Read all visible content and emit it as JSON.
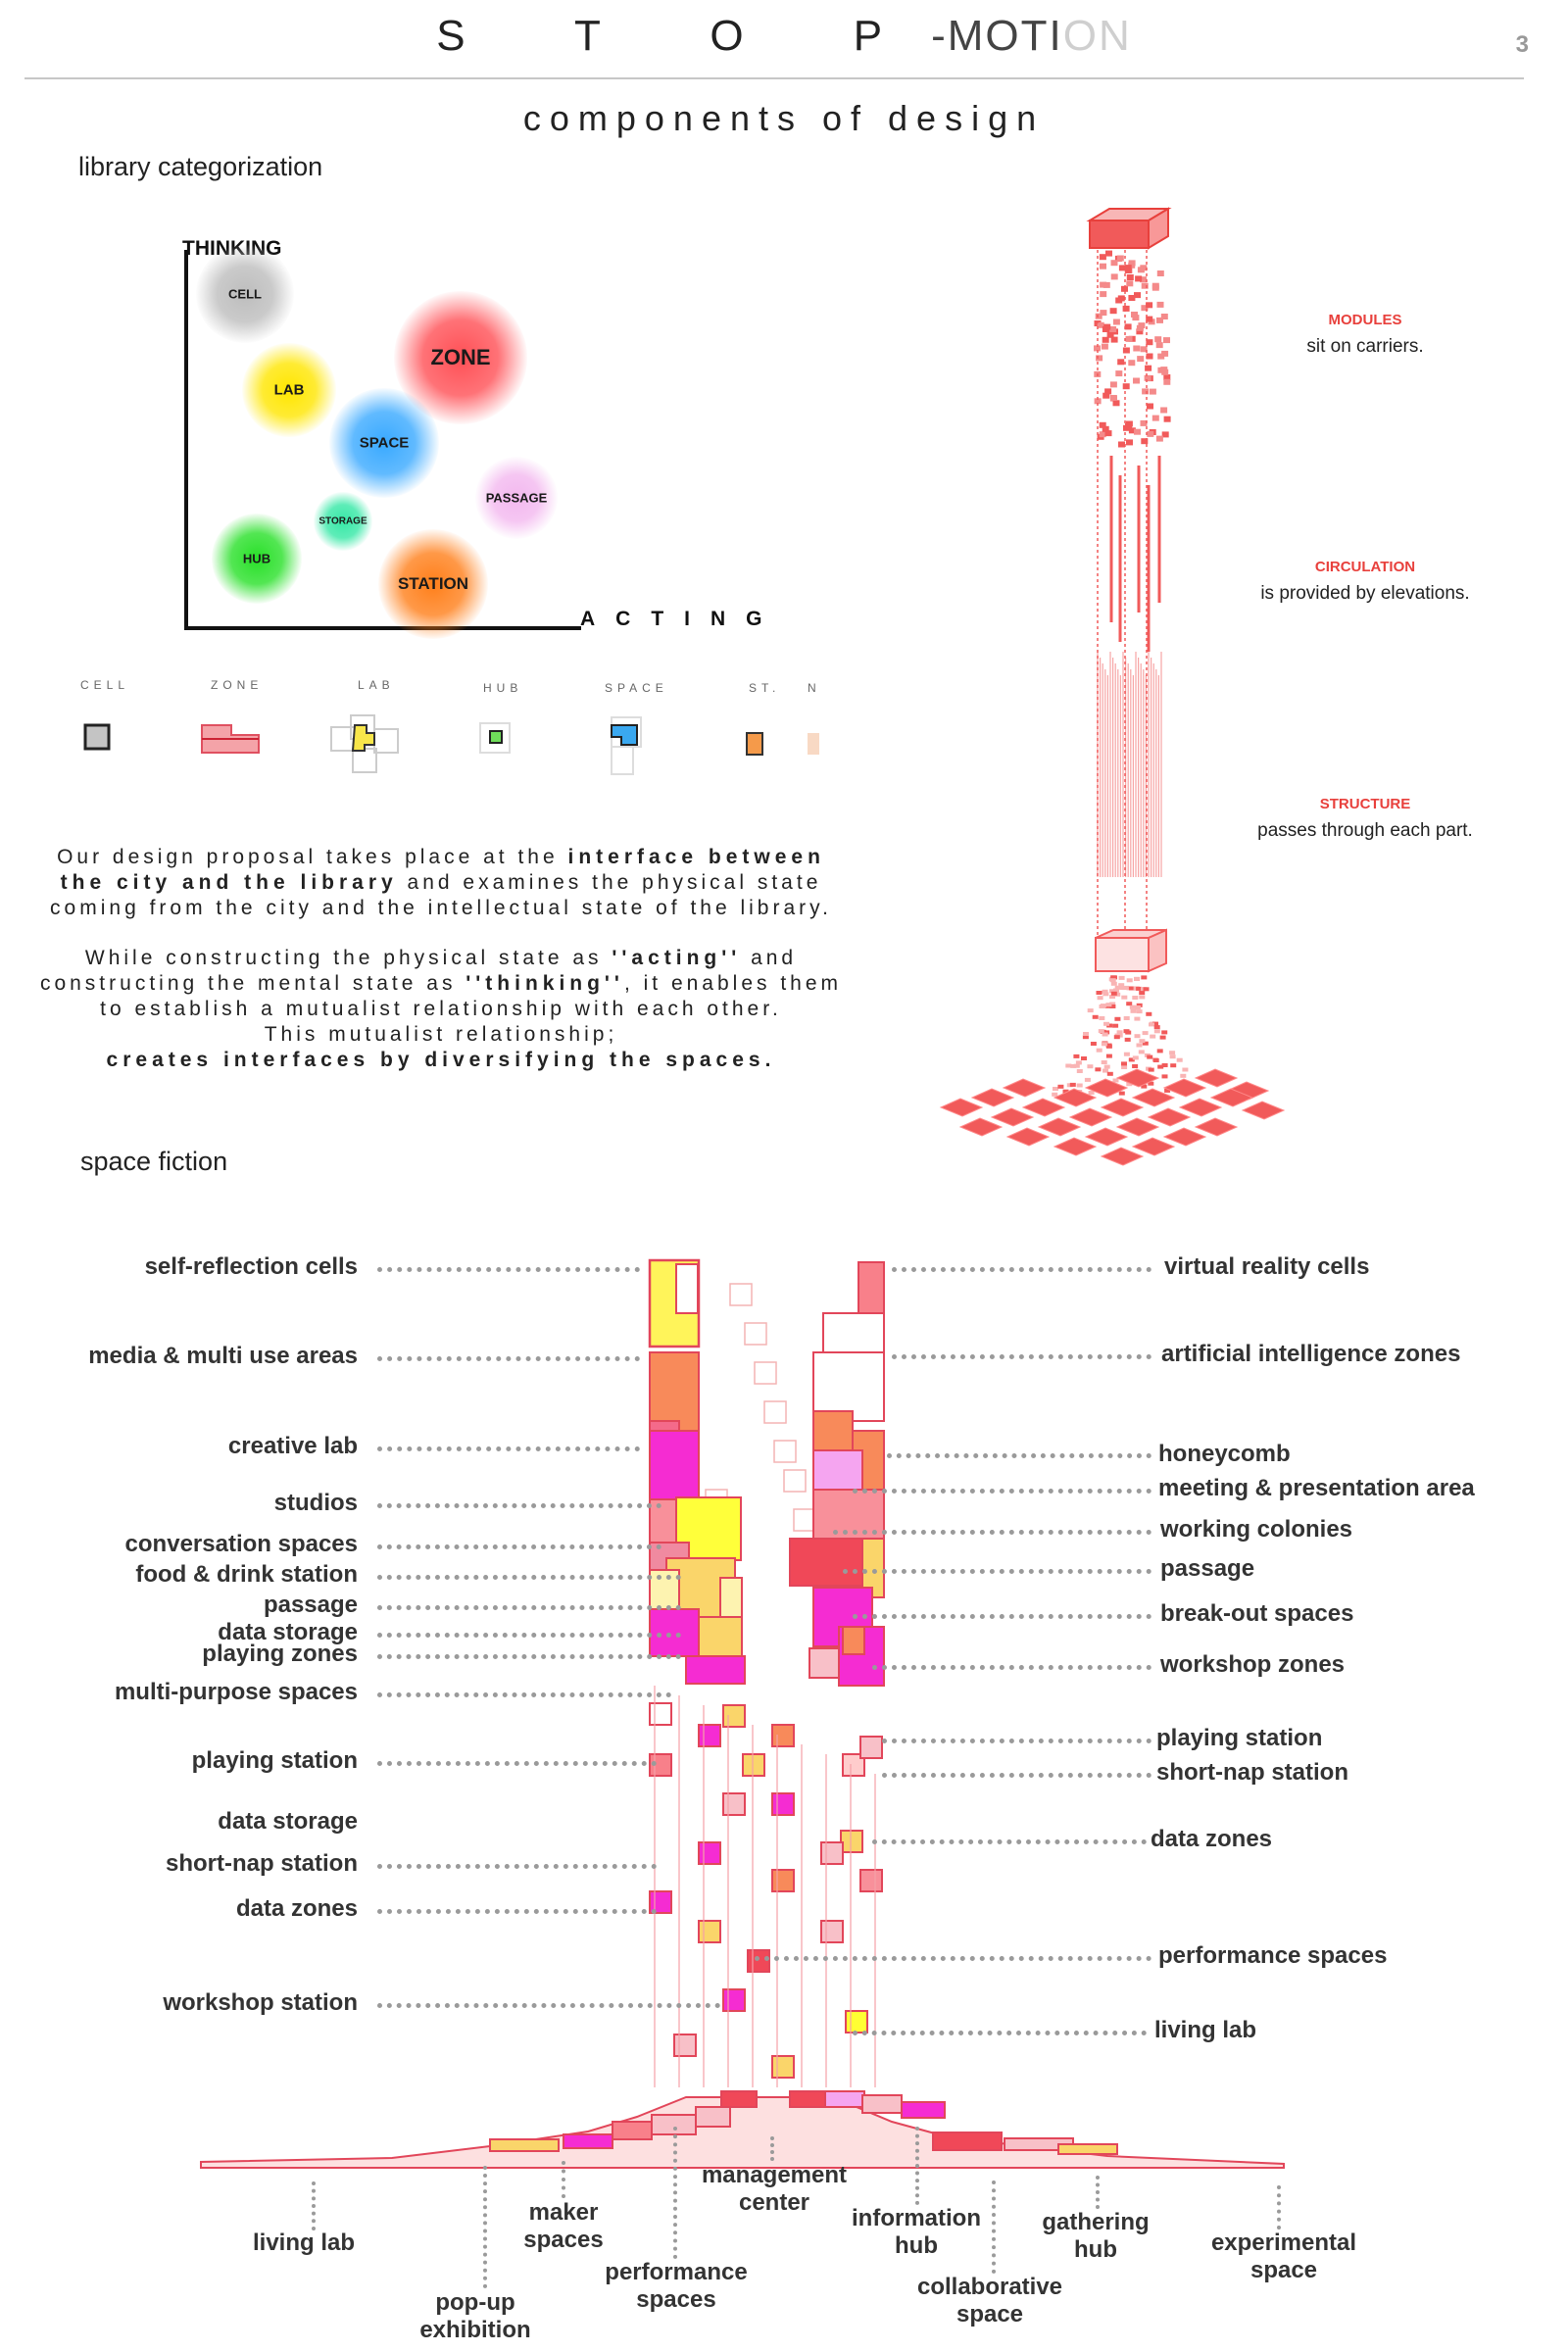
{
  "header": {
    "title_spaced": "S T O P",
    "title_dash": "-MOTI",
    "title_fade": "ON",
    "page_number": "3",
    "subtitle": "components of design"
  },
  "library_categorization": {
    "heading": "library categorization",
    "y_axis_label": "THINKING",
    "x_axis_label": "ACTING",
    "blobs": [
      {
        "label": "CELL",
        "color": "#bdbdbd"
      },
      {
        "label": "ZONE",
        "color": "#ff4f55"
      },
      {
        "label": "LAB",
        "color": "#ffe600"
      },
      {
        "label": "SPACE",
        "color": "#39a9ff"
      },
      {
        "label": "PASSAGE",
        "color": "#f3b8ef"
      },
      {
        "label": "STORAGE",
        "color": "#36e8a6"
      },
      {
        "label": "HUB",
        "color": "#28e028"
      },
      {
        "label": "STATION",
        "color": "#ff7f1a"
      }
    ]
  },
  "modules_legend": {
    "items": [
      {
        "label": "CELL",
        "color": "#c4c4c4"
      },
      {
        "label": "ZONE",
        "color": "#f4a3a8"
      },
      {
        "label": "LAB",
        "color": "#f8e64a"
      },
      {
        "label": "HUB",
        "color": "#6fdd5a"
      },
      {
        "label": "SPACE",
        "color": "#3aa8f0"
      },
      {
        "label": "ST.",
        "color": "#f59a4a"
      },
      {
        "label": "N",
        "color": "#f8d9c4"
      }
    ]
  },
  "proposal": {
    "p1_a": "Our design proposal takes place at the",
    "p1_b": "interface between the city and the library",
    "p1_c": "and examines the physical state coming from the city and the intellectual state of the library.",
    "p2_a": "While constructing the physical state as",
    "p2_b": "''acting''",
    "p2_c": "and constructing the mental state as",
    "p2_d": "''thinking''",
    "p2_e": ", it enables them to establish a mutualist relationship with each other.",
    "p2_f": "This mutualist relationship;",
    "p2_g": "creates interfaces by diversifying the spaces."
  },
  "tower_annotations": [
    {
      "title": "MODULES",
      "desc": "sit on carriers."
    },
    {
      "title": "CIRCULATION",
      "desc": "is provided by elevations."
    },
    {
      "title": "STRUCTURE",
      "desc": "passes through each part."
    }
  ],
  "space_fiction": {
    "heading": "space fiction",
    "left_labels": [
      "self-reflection cells",
      "media & multi use areas",
      "creative lab",
      "studios",
      "conversation spaces",
      "food & drink station",
      "passage",
      "data storage",
      "playing zones",
      "multi-purpose spaces",
      "playing station",
      "data storage",
      "short-nap station",
      "data zones",
      "workshop station"
    ],
    "right_labels": [
      "virtual reality cells",
      "artificial intelligence zones",
      "honeycomb",
      "meeting & presentation area",
      "working colonies",
      "passage",
      "break-out spaces",
      "workshop zones",
      "playing station",
      "short-nap station",
      "data zones",
      "performance spaces",
      "living lab"
    ],
    "bottom_labels": [
      {
        "l1": "living lab",
        "l2": ""
      },
      {
        "l1": "pop-up",
        "l2": "exhibition"
      },
      {
        "l1": "maker",
        "l2": "spaces"
      },
      {
        "l1": "performance",
        "l2": "spaces"
      },
      {
        "l1": "management",
        "l2": "center"
      },
      {
        "l1": "information",
        "l2": "hub"
      },
      {
        "l1": "collaborative",
        "l2": "space"
      },
      {
        "l1": "gathering",
        "l2": "hub"
      },
      {
        "l1": "experimental",
        "l2": "space"
      }
    ]
  }
}
